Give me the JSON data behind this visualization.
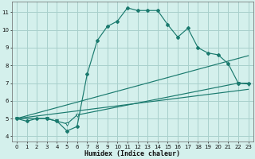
{
  "xlabel": "Humidex (Indice chaleur)",
  "bg_color": "#d4f0ec",
  "line_color": "#1a7a6e",
  "grid_color": "#a8d0cc",
  "xlim_min": -0.5,
  "xlim_max": 23.5,
  "ylim_min": 3.7,
  "ylim_max": 11.6,
  "yticks": [
    4,
    5,
    6,
    7,
    8,
    9,
    10,
    11
  ],
  "xticks": [
    0,
    1,
    2,
    3,
    4,
    5,
    6,
    7,
    8,
    9,
    10,
    11,
    12,
    13,
    14,
    15,
    16,
    17,
    18,
    19,
    20,
    21,
    22,
    23
  ],
  "line1_x": [
    0,
    1,
    2,
    3,
    4,
    5,
    6,
    7,
    8,
    9,
    10,
    11,
    12,
    13,
    14,
    15,
    16,
    17,
    18,
    19,
    20,
    21,
    22,
    23
  ],
  "line1_y": [
    5.0,
    4.85,
    5.0,
    5.0,
    4.85,
    4.3,
    4.55,
    7.5,
    9.4,
    10.2,
    10.5,
    11.25,
    11.1,
    11.1,
    11.1,
    10.3,
    9.6,
    10.1,
    9.0,
    8.7,
    8.6,
    8.1,
    7.0,
    7.0
  ],
  "line2_x": [
    0,
    3,
    4,
    5,
    6,
    22,
    23
  ],
  "line2_y": [
    5.0,
    5.0,
    4.85,
    4.7,
    5.2,
    7.0,
    6.95
  ],
  "line3_x": [
    0,
    23
  ],
  "line3_y": [
    5.0,
    6.65
  ],
  "line4_x": [
    0,
    23
  ],
  "line4_y": [
    5.0,
    8.55
  ]
}
